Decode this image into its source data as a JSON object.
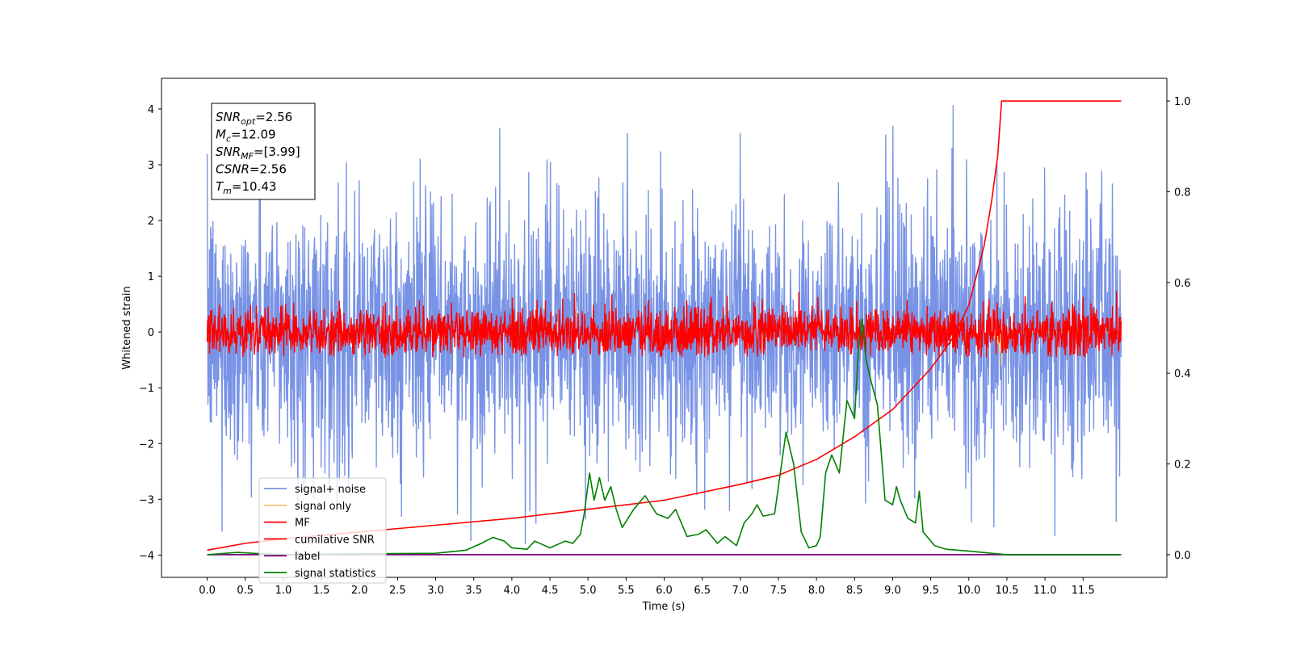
{
  "chart_data": {
    "type": "line",
    "xlabel": "Time (s)",
    "ylabel": "Whitened strain",
    "xlim": [
      -0.6,
      12.6
    ],
    "ylim": [
      -4.4,
      4.55
    ],
    "y2lim": [
      -0.05,
      1.05
    ],
    "x_ticks": [
      0.0,
      0.5,
      1.0,
      1.5,
      2.0,
      2.5,
      3.0,
      3.5,
      4.0,
      4.5,
      5.0,
      5.5,
      6.0,
      6.5,
      7.0,
      7.5,
      8.0,
      8.5,
      9.0,
      9.5,
      10.0,
      10.5,
      11.0,
      11.5
    ],
    "x_tick_labels": [
      "0.0",
      "0.5",
      "1.0",
      "1.5",
      "2.0",
      "2.5",
      "3.0",
      "3.5",
      "4.0",
      "4.5",
      "5.0",
      "5.5",
      "6.0",
      "6.5",
      "7.0",
      "7.5",
      "8.0",
      "8.5",
      "9.0",
      "9.5",
      "10.0",
      "10.5",
      "11.0",
      "11.5"
    ],
    "y_ticks": [
      4,
      3,
      2,
      1,
      0,
      -1,
      -2,
      -3,
      -4
    ],
    "y_tick_labels": [
      "4",
      "3",
      "2",
      "1",
      "0",
      "−1",
      "−2",
      "−3",
      "−4"
    ],
    "y2_ticks": [
      1.0,
      0.8,
      0.6,
      0.4,
      0.2,
      0.0
    ],
    "y2_tick_labels": [
      "1.0",
      "0.8",
      "0.6",
      "0.4",
      "0.2",
      "0.0"
    ],
    "annotation": {
      "lines": [
        {
          "sym": "SNR",
          "sub": "opt",
          "val": "=2.56"
        },
        {
          "sym": "M",
          "sub": "c",
          "val": "=12.09"
        },
        {
          "sym": "SNR",
          "sub": "MF",
          "val": "=[3.99]"
        },
        {
          "sym": "CSNR",
          "sub": "",
          "val": "=2.56"
        },
        {
          "sym": "T",
          "sub": "m",
          "val": "=10.43"
        }
      ]
    },
    "legend_placement": "lower-left",
    "series": [
      {
        "name": "signal+ noise",
        "color": "#7893e6",
        "axis": "left",
        "style": "noise",
        "x_range": [
          0.0,
          12.0
        ],
        "y_range": [
          -3.8,
          4.2
        ]
      },
      {
        "name": "signal only",
        "color": "#f7c77a",
        "axis": "left",
        "style": "chirp",
        "peak_x": 10.43,
        "y_range": [
          -0.6,
          0.1
        ]
      },
      {
        "name": "MF",
        "color": "#ff0000",
        "axis": "left",
        "style": "noise",
        "x_range": [
          0.0,
          12.0
        ],
        "y_range": [
          -0.45,
          0.95
        ]
      },
      {
        "name": "cumilative SNR",
        "color": "#ff0000",
        "axis": "right",
        "x": [
          0.0,
          0.5,
          1.0,
          2.0,
          3.0,
          4.0,
          5.0,
          6.0,
          7.0,
          7.5,
          8.0,
          8.5,
          9.0,
          9.5,
          9.8,
          10.0,
          10.2,
          10.3,
          10.38,
          10.43,
          12.0
        ],
        "y": [
          0.01,
          0.025,
          0.035,
          0.05,
          0.065,
          0.08,
          0.1,
          0.12,
          0.155,
          0.175,
          0.21,
          0.26,
          0.32,
          0.41,
          0.48,
          0.55,
          0.68,
          0.78,
          0.88,
          1.0,
          1.0
        ]
      },
      {
        "name": "label",
        "color": "#800080",
        "axis": "right",
        "x": [
          0.0,
          12.0
        ],
        "y": [
          0.0,
          0.0
        ]
      },
      {
        "name": "signal statistics",
        "color": "#008000",
        "axis": "right",
        "x": [
          0.0,
          0.4,
          0.6,
          1.0,
          2.0,
          3.0,
          3.4,
          3.6,
          3.75,
          3.9,
          4.0,
          4.2,
          4.3,
          4.5,
          4.7,
          4.8,
          4.9,
          4.95,
          5.02,
          5.08,
          5.15,
          5.22,
          5.3,
          5.37,
          5.45,
          5.6,
          5.75,
          5.9,
          6.05,
          6.15,
          6.3,
          6.45,
          6.55,
          6.7,
          6.8,
          6.95,
          7.05,
          7.15,
          7.22,
          7.3,
          7.45,
          7.6,
          7.7,
          7.8,
          7.9,
          8.0,
          8.05,
          8.12,
          8.2,
          8.3,
          8.4,
          8.5,
          8.55,
          8.6,
          8.65,
          8.72,
          8.8,
          8.9,
          9.0,
          9.05,
          9.1,
          9.2,
          9.3,
          9.35,
          9.4,
          9.55,
          9.7,
          10.0,
          10.3,
          10.5,
          12.0
        ],
        "y": [
          0.0,
          0.005,
          0.003,
          0.0,
          0.002,
          0.003,
          0.01,
          0.025,
          0.038,
          0.03,
          0.015,
          0.012,
          0.03,
          0.015,
          0.03,
          0.025,
          0.045,
          0.09,
          0.18,
          0.12,
          0.17,
          0.12,
          0.15,
          0.1,
          0.06,
          0.1,
          0.13,
          0.09,
          0.08,
          0.1,
          0.04,
          0.045,
          0.055,
          0.025,
          0.04,
          0.02,
          0.07,
          0.09,
          0.11,
          0.085,
          0.09,
          0.27,
          0.2,
          0.05,
          0.015,
          0.02,
          0.04,
          0.18,
          0.22,
          0.18,
          0.34,
          0.3,
          0.45,
          0.52,
          0.43,
          0.38,
          0.33,
          0.12,
          0.11,
          0.15,
          0.12,
          0.08,
          0.07,
          0.14,
          0.05,
          0.02,
          0.012,
          0.008,
          0.003,
          0.0,
          0.0
        ]
      }
    ]
  }
}
